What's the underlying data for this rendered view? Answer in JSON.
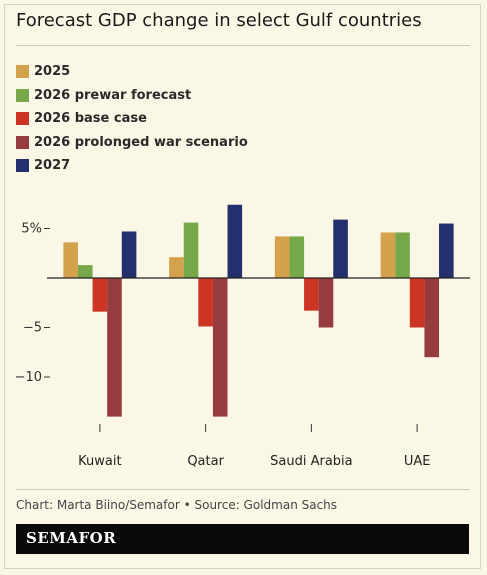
{
  "title": "Forecast GDP change in select Gulf countries",
  "source": "Chart: Marta Biino/Semafor • Source: Goldman Sachs",
  "brand": "SEMAFOR",
  "chart_data": {
    "type": "bar",
    "title": "Forecast GDP change in select Gulf countries",
    "categories": [
      "Kuwait",
      "Qatar",
      "Saudi Arabia",
      "UAE"
    ],
    "series": [
      {
        "name": "2025",
        "color": "#d4a24c",
        "values": [
          3.6,
          2.1,
          4.2,
          4.6
        ]
      },
      {
        "name": "2026 prewar forecast",
        "color": "#76a84a",
        "values": [
          1.3,
          5.6,
          4.2,
          4.6
        ]
      },
      {
        "name": "2026 base case",
        "color": "#cc3524",
        "values": [
          -3.4,
          -4.9,
          -3.3,
          -5.0
        ]
      },
      {
        "name": "2026 prolonged war scenario",
        "color": "#963c3e",
        "values": [
          -14.0,
          -14.0,
          -5.0,
          -8.0
        ]
      },
      {
        "name": "2027",
        "color": "#24306e",
        "values": [
          4.7,
          7.4,
          5.9,
          5.5
        ]
      }
    ],
    "ylim": [
      -15,
      8
    ],
    "yticks": [
      5,
      0,
      -5,
      -10
    ],
    "ytick_labels": [
      "5%",
      "",
      "−5",
      "−10"
    ],
    "xlabel": "",
    "ylabel": "",
    "legend": "top-left",
    "grid": false
  }
}
